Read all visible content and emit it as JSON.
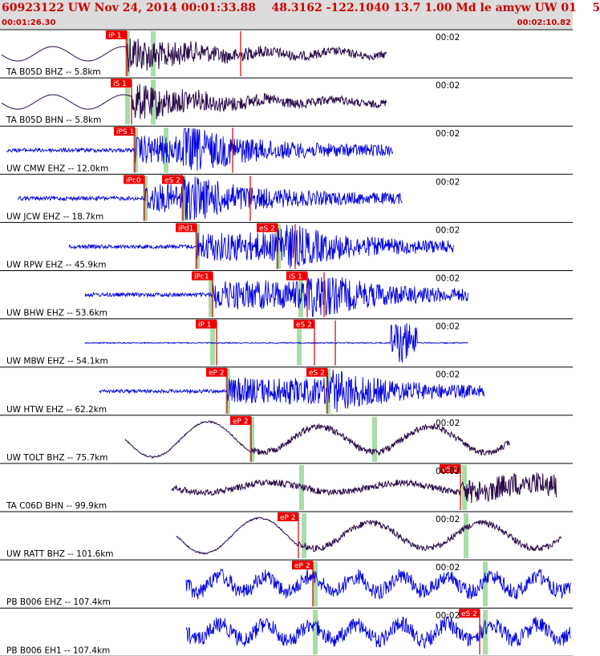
{
  "header": {
    "title": "60923122 UW Nov 24, 2014 00:01:33.88    48.3162 -122.1040 13.7 1.00 Md le amyw UW 01    5",
    "time_start": "00:01:26.30",
    "time_end": "00:02:10.82"
  },
  "colors": {
    "pick_box": "#ee0000",
    "pick_line": "#cc0000",
    "theoretical_marker": "#a8dca8",
    "broadband_trace": "#2a0a4a",
    "short_period_trace": "#0000dd",
    "separator": "#000000",
    "header_bg": "#dcdcdc",
    "header_text": "#cc0000"
  },
  "traces": [
    {
      "label": "TA B05D BHZ -- 5.8km",
      "time": "00:02",
      "color": "#2a0a4a",
      "picks": [
        {
          "label": "iP 1"
        }
      ]
    },
    {
      "label": "TA B05D BHN -- 5.8km",
      "time": "00:02",
      "color": "#2a0a4a",
      "picks": [
        {
          "label": "iS 1"
        }
      ]
    },
    {
      "label": "UW CMW EHZ -- 12.0km",
      "time": "00:02",
      "color": "#0000dd",
      "picks": [
        {
          "label": "iPS 1"
        }
      ]
    },
    {
      "label": "UW JCW EHZ -- 18.7km",
      "time": "00:02",
      "color": "#0000dd",
      "picks": [
        {
          "label": "iPc0"
        },
        {
          "label": "eS 2"
        }
      ]
    },
    {
      "label": "UW RPW EHZ -- 45.9km",
      "time": "00:02",
      "color": "#0000dd",
      "picks": [
        {
          "label": "iPd1"
        },
        {
          "label": "eS 2"
        }
      ]
    },
    {
      "label": "UW BHW EHZ -- 53.6km",
      "time": "00:02",
      "color": "#0000dd",
      "picks": [
        {
          "label": "iPc1"
        },
        {
          "label": "iS 1"
        }
      ]
    },
    {
      "label": "UW MBW EHZ -- 54.1km",
      "time": "00:02",
      "color": "#0000dd",
      "picks": [
        {
          "label": "iP 1"
        },
        {
          "label": "eS 2"
        }
      ]
    },
    {
      "label": "UW HTW EHZ -- 62.2km",
      "time": "00:02",
      "color": "#0000dd",
      "picks": [
        {
          "label": "eP 2"
        },
        {
          "label": "eS 2"
        }
      ]
    },
    {
      "label": "UW TOLT BHZ -- 75.7km",
      "time": "00:02",
      "color": "#2a0a4a",
      "picks": [
        {
          "label": "eP 2"
        }
      ]
    },
    {
      "label": "TA C06D BHN -- 99.9km",
      "time": "00:02",
      "color": "#2a0a4a",
      "picks": [
        {
          "label": "eS 2"
        }
      ]
    },
    {
      "label": "UW RATT BHZ -- 101.6km",
      "time": "00:02",
      "color": "#2a0a4a",
      "picks": [
        {
          "label": "eP 2"
        }
      ]
    },
    {
      "label": "PB B006 EHZ -- 107.4km",
      "time": "00:02",
      "color": "#0000dd",
      "picks": [
        {
          "label": "eP 2"
        }
      ]
    },
    {
      "label": "PB B006 EH1 -- 107.4km",
      "time": "00:02",
      "color": "#0000dd",
      "picks": [
        {
          "label": "eS 2"
        }
      ]
    }
  ]
}
